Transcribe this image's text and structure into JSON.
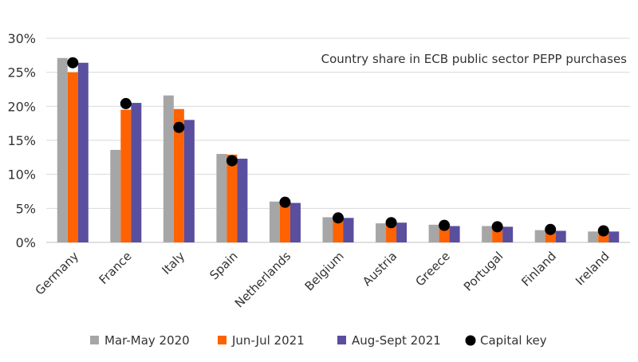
{
  "chart_data": {
    "type": "bar",
    "title": "Country share in ECB public sector PEPP purchases",
    "categories": [
      "Germany",
      "France",
      "Italy",
      "Spain",
      "Netherlands",
      "Belgium",
      "Austria",
      "Greece",
      "Portugal",
      "Finland",
      "Ireland"
    ],
    "series": [
      {
        "name": "Mar-May 2020",
        "color": "#a6a6a6",
        "values": [
          27.1,
          13.6,
          21.6,
          13.0,
          6.0,
          3.7,
          2.8,
          2.6,
          2.4,
          1.8,
          1.6
        ]
      },
      {
        "name": "Jun-Jul 2021",
        "color": "#ff6200",
        "values": [
          25.0,
          19.5,
          19.6,
          12.9,
          5.8,
          3.4,
          2.9,
          2.5,
          2.5,
          1.8,
          1.6
        ]
      },
      {
        "name": "Aug-Sept 2021",
        "color": "#5a4e9e",
        "values": [
          26.4,
          20.5,
          18.0,
          12.3,
          5.8,
          3.6,
          2.9,
          2.4,
          2.3,
          1.7,
          1.6
        ]
      }
    ],
    "capital_key": {
      "name": "Capital key",
      "color": "#000000",
      "values": [
        26.4,
        20.4,
        16.9,
        12.0,
        5.9,
        3.6,
        2.9,
        2.5,
        2.3,
        1.9,
        1.7
      ]
    },
    "yaxis": {
      "min": 0,
      "max": 30,
      "ticks": [
        0,
        5,
        10,
        15,
        20,
        25,
        30
      ],
      "tick_labels": [
        "0%",
        "5%",
        "10%",
        "15%",
        "20%",
        "25%",
        "30%"
      ]
    },
    "grid": true,
    "legend_position": "bottom"
  }
}
